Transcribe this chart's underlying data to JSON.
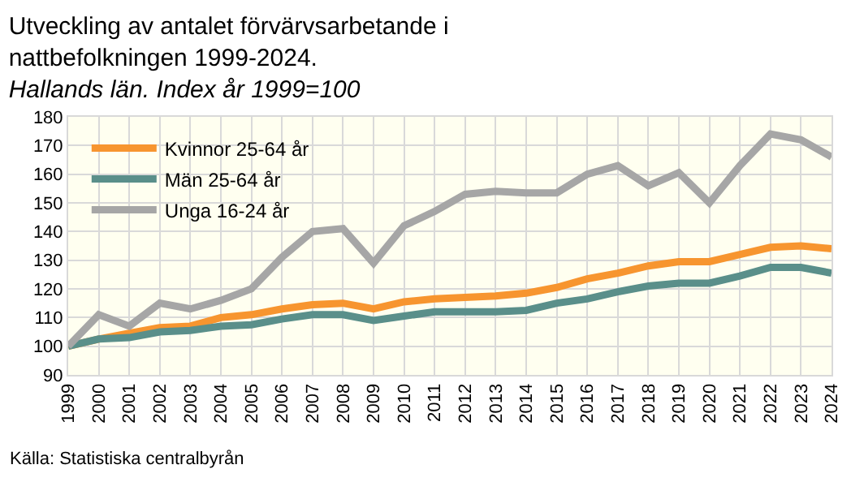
{
  "chart_data": {
    "type": "line",
    "title": "Utveckling av antalet förvärvsarbetande i\nnattbefolkningen 1999-2024.",
    "subtitle": "Hallands län. Index år 1999=100",
    "x": [
      1999,
      2000,
      2001,
      2002,
      2003,
      2004,
      2005,
      2006,
      2007,
      2008,
      2009,
      2010,
      2011,
      2012,
      2013,
      2014,
      2015,
      2016,
      2017,
      2018,
      2019,
      2020,
      2021,
      2022,
      2023,
      2024
    ],
    "series": [
      {
        "name": "Kvinnor 25-64 år",
        "color": "#f7952f",
        "values": [
          100,
          102.5,
          104.5,
          106.5,
          107,
          110,
          111,
          113,
          114.5,
          115,
          113,
          115.5,
          116.5,
          117,
          117.5,
          118.5,
          120.5,
          123.5,
          125.5,
          128,
          129.5,
          129.5,
          132,
          134.5,
          135,
          134
        ]
      },
      {
        "name": "Män 25-64 år",
        "color": "#5a8f8a",
        "values": [
          100,
          102.5,
          103,
          105,
          105.5,
          107,
          107.5,
          109.5,
          111,
          111,
          109,
          110.5,
          112,
          112,
          112,
          112.5,
          115,
          116.5,
          119,
          121,
          122,
          122,
          124.5,
          127.5,
          127.5,
          125.5
        ]
      },
      {
        "name": "Unga 16-24 år",
        "color": "#a6a6a6",
        "values": [
          100,
          111,
          107,
          115,
          113,
          116,
          120,
          131,
          140,
          141,
          129,
          142,
          147,
          153,
          154,
          153.5,
          153.5,
          160,
          163,
          156,
          160.5,
          150,
          163,
          174,
          172,
          166
        ]
      }
    ],
    "xlim": [
      1999,
      2024
    ],
    "xticks": [
      1999,
      2000,
      2001,
      2002,
      2003,
      2004,
      2005,
      2006,
      2007,
      2008,
      2009,
      2010,
      2011,
      2012,
      2013,
      2014,
      2015,
      2016,
      2017,
      2018,
      2019,
      2020,
      2021,
      2022,
      2023,
      2024
    ],
    "ylim": [
      90,
      180
    ],
    "yticks": [
      90,
      100,
      110,
      120,
      130,
      140,
      150,
      160,
      170,
      180
    ],
    "grid": true,
    "legend": "top left",
    "marker": "none",
    "line_style": "solid",
    "annotations": [
      "Källa: Statistiska centralbyrån"
    ]
  }
}
